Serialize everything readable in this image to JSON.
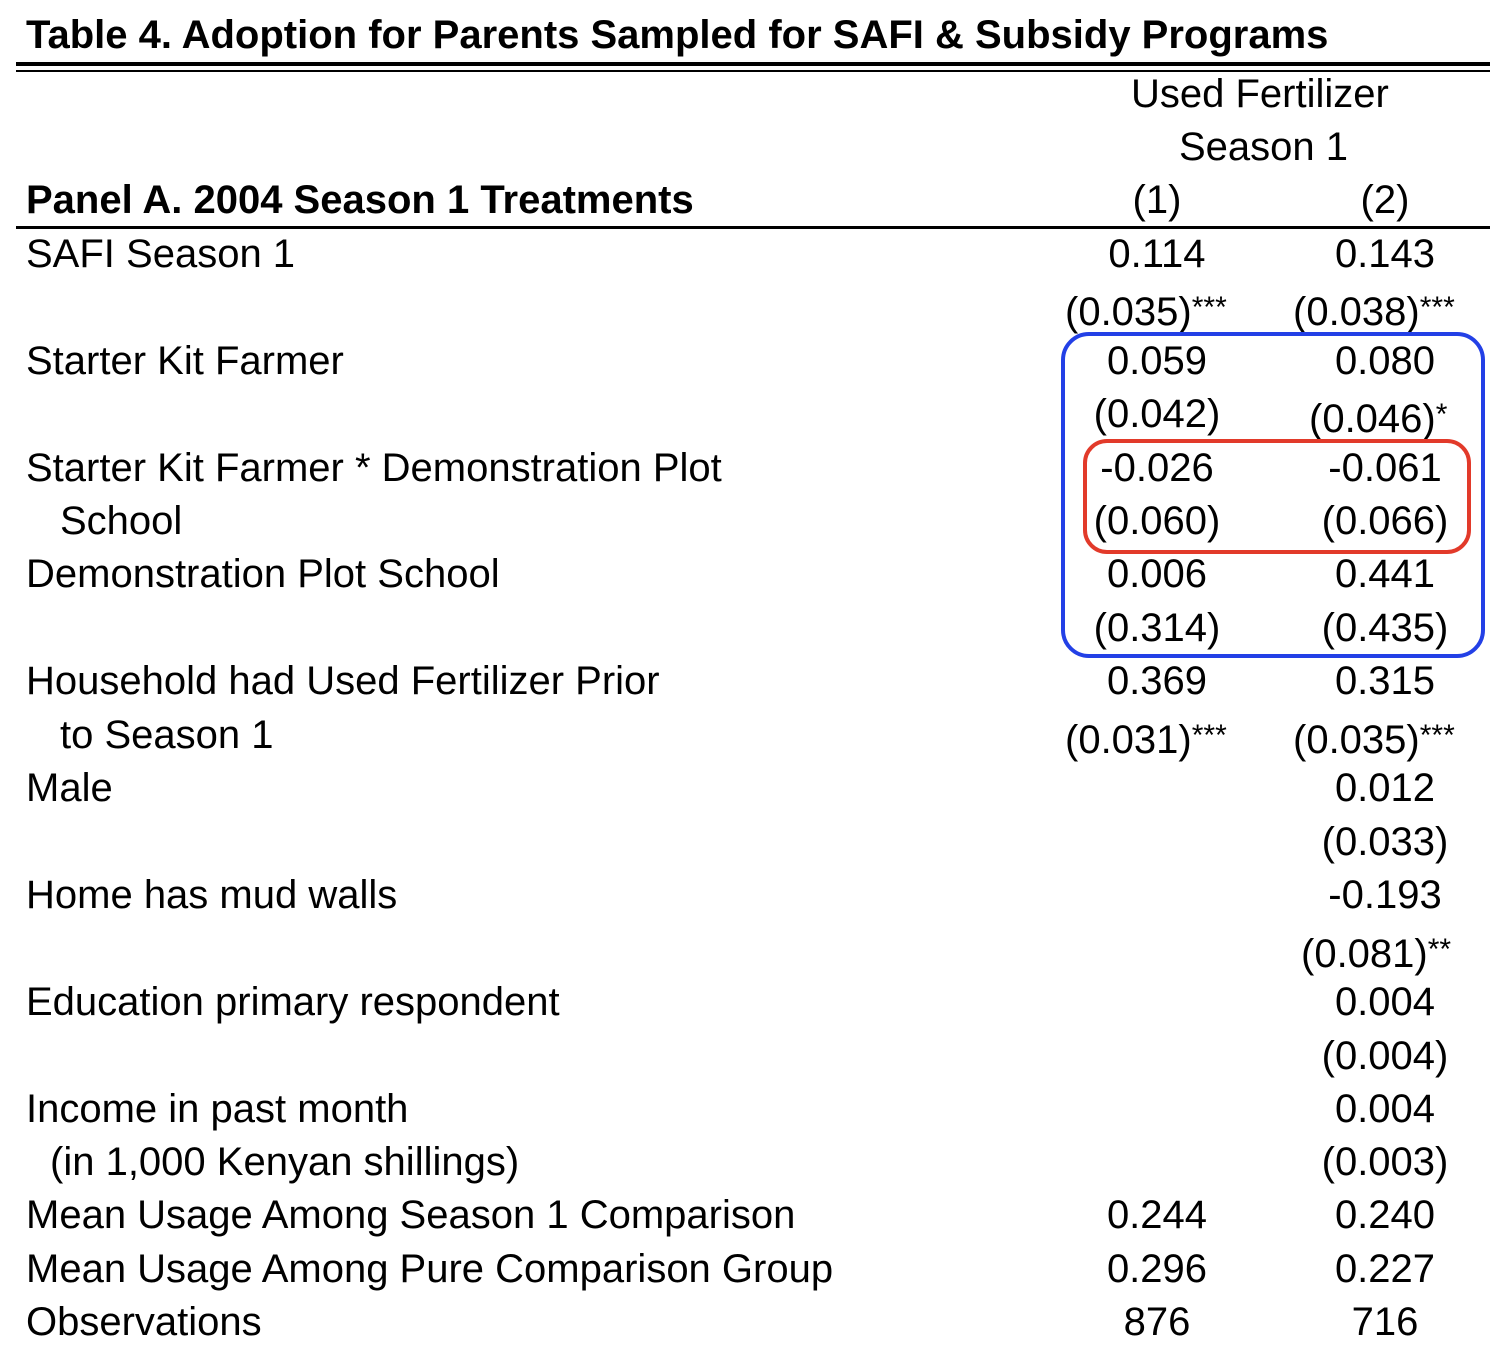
{
  "title": "Table 4. Adoption for Parents Sampled for SAFI & Subsidy Programs",
  "header": {
    "dep_var_line1": "Used Fertilizer",
    "dep_var_line2": "Season 1",
    "panel": "Panel A. 2004 Season 1 Treatments",
    "col1": "(1)",
    "col2": "(2)"
  },
  "rows": {
    "safi": {
      "label": "SAFI Season 1",
      "c1": "0.114",
      "c1_se": "(0.035)",
      "c1_star": "***",
      "c2": "0.143",
      "c2_se": "(0.038)",
      "c2_star": "***"
    },
    "starter": {
      "label": "Starter Kit Farmer",
      "c1": "0.059",
      "c1_se": "(0.042)",
      "c1_star": "",
      "c2": "0.080",
      "c2_se": "(0.046)",
      "c2_star": "*"
    },
    "starter_demo": {
      "label": "Starter Kit Farmer * Demonstration Plot",
      "label2": "School",
      "c1": "-0.026",
      "c1_se": "(0.060)",
      "c2": "-0.061",
      "c2_se": "(0.066)"
    },
    "demo": {
      "label": "Demonstration Plot School",
      "c1": "0.006",
      "c1_se": "(0.314)",
      "c2": "0.441",
      "c2_se": "(0.435)"
    },
    "prior": {
      "label": "Household had Used Fertilizer Prior",
      "label2": "to Season 1",
      "c1": "0.369",
      "c1_se": "(0.031)",
      "c1_star": "***",
      "c2": "0.315",
      "c2_se": "(0.035)",
      "c2_star": "***"
    },
    "male": {
      "label": "Male",
      "c2": "0.012",
      "c2_se": "(0.033)"
    },
    "mud": {
      "label": "Home has mud walls",
      "c2": "-0.193",
      "c2_se": "(0.081)",
      "c2_star": "**"
    },
    "edu": {
      "label": "Education primary respondent",
      "c2": "0.004",
      "c2_se": "(0.004)"
    },
    "income": {
      "label": "Income in past month",
      "label2": "(in 1,000 Kenyan shillings)",
      "c2": "0.004",
      "c2_se": "(0.003)"
    },
    "mean_s1": {
      "label": "Mean Usage Among Season 1 Comparison",
      "c1": "0.244",
      "c2": "0.240"
    },
    "mean_pure": {
      "label": "Mean Usage Among Pure Comparison Group",
      "c1": "0.296",
      "c2": "0.227"
    },
    "obs": {
      "label": "Observations",
      "c1": "876",
      "c2": "716"
    }
  },
  "highlight_colors": {
    "blue_box": "#2340e6",
    "red_box": "#e23a2a"
  }
}
